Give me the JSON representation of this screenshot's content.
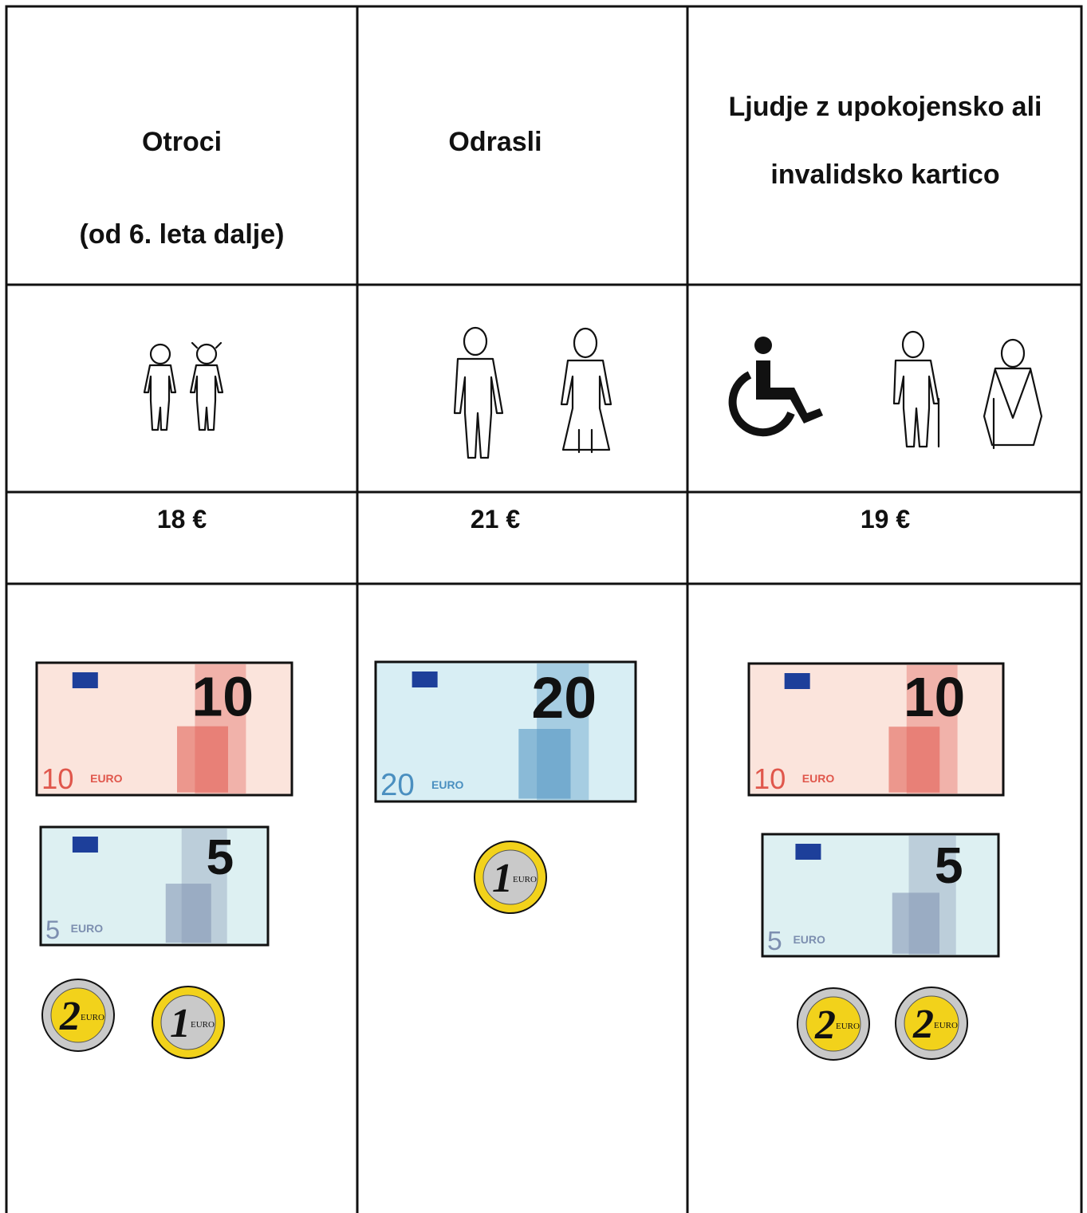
{
  "table": {
    "columns": [
      {
        "header": [
          "Otroci",
          "(od 6. leta dalje)"
        ],
        "price": "18 €",
        "notes": [
          {
            "value": "10",
            "currency": "EURO",
            "color": "#e0574c",
            "tint": "#fbe4dc"
          },
          {
            "value": "5",
            "currency": "EURO",
            "color": "#7d8fb0",
            "tint": "#ddf0f2"
          }
        ],
        "coins": [
          {
            "value": "2",
            "currency": "EURO",
            "outer": "#c9c9c9",
            "inner": "#f2d21b"
          },
          {
            "value": "1",
            "currency": "EURO",
            "outer": "#f2d21b",
            "inner": "#c9c9c9"
          }
        ]
      },
      {
        "header": [
          "Odrasli"
        ],
        "price": "21 €",
        "notes": [
          {
            "value": "20",
            "currency": "EURO",
            "color": "#4a8fc0",
            "tint": "#d8eef4"
          }
        ],
        "coins": [
          {
            "value": "1",
            "currency": "EURO",
            "outer": "#f2d21b",
            "inner": "#c9c9c9"
          }
        ]
      },
      {
        "header": [
          "Ljudje z upokojensko ali",
          "invalidsko kartico"
        ],
        "price": "19 €",
        "notes": [
          {
            "value": "10",
            "currency": "EURO",
            "color": "#e0574c",
            "tint": "#fbe4dc"
          },
          {
            "value": "5",
            "currency": "EURO",
            "color": "#7d8fb0",
            "tint": "#ddf0f2"
          }
        ],
        "coins": [
          {
            "value": "2",
            "currency": "EURO",
            "outer": "#c9c9c9",
            "inner": "#f2d21b"
          },
          {
            "value": "2",
            "currency": "EURO",
            "outer": "#c9c9c9",
            "inner": "#f2d21b"
          }
        ]
      }
    ]
  }
}
